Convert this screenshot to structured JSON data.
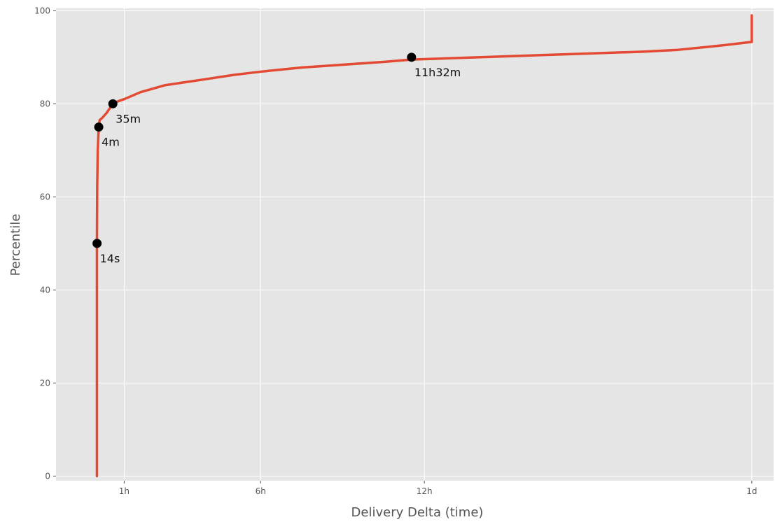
{
  "chart_data": {
    "type": "line",
    "title": "",
    "xlabel": "Delivery Delta (time)",
    "ylabel": "Percentile",
    "x_unit": "hours",
    "xlim": [
      -1.5,
      24.8
    ],
    "ylim": [
      -1,
      100.5
    ],
    "x_ticks": [
      {
        "value": 1,
        "label": "1h"
      },
      {
        "value": 6,
        "label": "6h"
      },
      {
        "value": 12,
        "label": "12h"
      },
      {
        "value": 24,
        "label": "1d"
      }
    ],
    "y_ticks": [
      {
        "value": 0,
        "label": "0"
      },
      {
        "value": 20,
        "label": "20"
      },
      {
        "value": 40,
        "label": "40"
      },
      {
        "value": 60,
        "label": "60"
      },
      {
        "value": 80,
        "label": "80"
      },
      {
        "value": 100,
        "label": "100"
      }
    ],
    "grid": true,
    "series": [
      {
        "color": "#e24a33",
        "x": [
          0.0,
          0.0,
          0.0,
          0.004,
          0.01,
          0.03,
          0.067,
          0.1,
          0.2,
          0.35,
          0.583,
          0.8,
          1.0,
          1.6,
          2.5,
          4.0,
          5.0,
          6.0,
          7.5,
          9.0,
          10.5,
          11.53,
          12.5,
          15.0,
          18.0,
          20.0,
          21.3,
          23.0,
          24.0,
          24.0
        ],
        "y": [
          0,
          30,
          50,
          55,
          62,
          70,
          75,
          76.5,
          77,
          78,
          80,
          80.6,
          81,
          82.5,
          84,
          85.3,
          86.2,
          86.9,
          87.8,
          88.4,
          89.0,
          89.5,
          89.7,
          90.2,
          90.8,
          91.2,
          91.6,
          92.6,
          93.3,
          99
        ]
      }
    ],
    "annotations": [
      {
        "x": 0.004,
        "y": 50,
        "label": "14s"
      },
      {
        "x": 0.067,
        "y": 75,
        "label": "4m"
      },
      {
        "x": 0.583,
        "y": 80,
        "label": "35m"
      },
      {
        "x": 11.53,
        "y": 90,
        "label": "11h32m"
      }
    ]
  }
}
